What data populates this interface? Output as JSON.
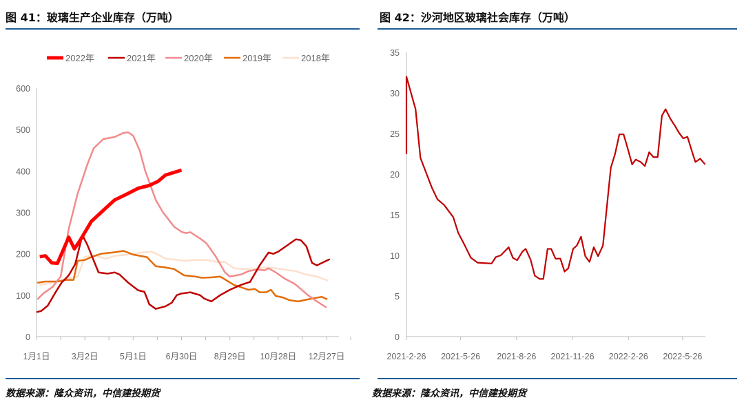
{
  "left": {
    "title": "图 41：玻璃生产企业库存（万吨）",
    "source": "数据来源：隆众资讯，中信建投期货"
  },
  "right": {
    "title": "图 42：沙河地区玻璃社会库存（万吨）",
    "source": "数据来源：隆众资讯，中信建投期货"
  },
  "rule_color": "#1f5c99",
  "chart_data": [
    {
      "type": "line",
      "title": "图 41：玻璃生产企业库存（万吨）",
      "xlabel": "",
      "ylabel": "",
      "ylim": [
        0,
        600
      ],
      "yticks": [
        0,
        100,
        200,
        300,
        400,
        500,
        600
      ],
      "xticks": [
        "1月1日",
        "3月2日",
        "5月1日",
        "6月30日",
        "8月29日",
        "10月28日",
        "12月27日"
      ],
      "grid": false,
      "legend": "top",
      "series": [
        {
          "name": "2022年",
          "color": "#ff0000",
          "points": [
            [
              "1-5",
              193
            ],
            [
              "1-12",
              195
            ],
            [
              "1-20",
              178
            ],
            [
              "1-27",
              177
            ],
            [
              "2-10",
              240
            ],
            [
              "2-17",
              212
            ],
            [
              "2-24",
              232
            ],
            [
              "3-10",
              278
            ],
            [
              "3-25",
              305
            ],
            [
              "4-8",
              330
            ],
            [
              "4-22",
              343
            ],
            [
              "5-7",
              358
            ],
            [
              "5-21",
              365
            ],
            [
              "6-1",
              375
            ],
            [
              "6-10",
              390
            ],
            [
              "6-30",
              402
            ]
          ]
        },
        {
          "name": "2021年",
          "color": "#c00000",
          "points": [
            [
              "1-1",
              59
            ],
            [
              "1-7",
              62
            ],
            [
              "1-15",
              75
            ],
            [
              "1-24",
              105
            ],
            [
              "2-1",
              130
            ],
            [
              "2-10",
              148
            ],
            [
              "2-18",
              175
            ],
            [
              "2-27",
              245
            ],
            [
              "3-5",
              222
            ],
            [
              "3-19",
              155
            ],
            [
              "3-30",
              152
            ],
            [
              "4-8",
              155
            ],
            [
              "4-14",
              150
            ],
            [
              "4-25",
              130
            ],
            [
              "5-7",
              112
            ],
            [
              "5-15",
              108
            ],
            [
              "5-21",
              78
            ],
            [
              "5-29",
              67
            ],
            [
              "6-10",
              73
            ],
            [
              "6-18",
              82
            ],
            [
              "6-24",
              100
            ],
            [
              "6-30",
              104
            ],
            [
              "7-11",
              107
            ],
            [
              "7-23",
              100
            ],
            [
              "7-28",
              92
            ],
            [
              "8-6",
              85
            ],
            [
              "8-17",
              100
            ],
            [
              "8-29",
              113
            ],
            [
              "9-12",
              125
            ],
            [
              "9-23",
              132
            ],
            [
              "10-5",
              172
            ],
            [
              "10-16",
              203
            ],
            [
              "10-22",
              200
            ],
            [
              "10-28",
              205
            ],
            [
              "11-19",
              235
            ],
            [
              "11-25",
              233
            ],
            [
              "12-2",
              218
            ],
            [
              "12-9",
              178
            ],
            [
              "12-15",
              172
            ],
            [
              "12-31",
              187
            ]
          ]
        },
        {
          "name": "2020年",
          "color": "#f28b8b",
          "points": [
            [
              "1-2",
              90
            ],
            [
              "1-10",
              105
            ],
            [
              "1-21",
              120
            ],
            [
              "1-31",
              145
            ],
            [
              "2-10",
              260
            ],
            [
              "2-21",
              345
            ],
            [
              "3-5",
              415
            ],
            [
              "3-13",
              455
            ],
            [
              "3-25",
              477
            ],
            [
              "4-8",
              482
            ],
            [
              "4-19",
              492
            ],
            [
              "4-25",
              493
            ],
            [
              "5-1",
              485
            ],
            [
              "5-9",
              450
            ],
            [
              "5-16",
              400
            ],
            [
              "5-29",
              330
            ],
            [
              "6-7",
              300
            ],
            [
              "6-21",
              265
            ],
            [
              "6-30",
              253
            ],
            [
              "7-5",
              250
            ],
            [
              "7-11",
              252
            ],
            [
              "7-23",
              237
            ],
            [
              "7-31",
              225
            ],
            [
              "8-11",
              195
            ],
            [
              "8-23",
              155
            ],
            [
              "8-29",
              145
            ],
            [
              "9-12",
              150
            ],
            [
              "9-21",
              158
            ],
            [
              "10-2",
              162
            ],
            [
              "10-11",
              160
            ],
            [
              "10-16",
              165
            ],
            [
              "10-25",
              155
            ],
            [
              "11-5",
              140
            ],
            [
              "11-17",
              128
            ],
            [
              "11-22",
              120
            ],
            [
              "12-4",
              100
            ],
            [
              "12-15",
              85
            ],
            [
              "12-27",
              70
            ]
          ]
        },
        {
          "name": "2019年",
          "color": "#e36c09",
          "points": [
            [
              "1-2",
              130
            ],
            [
              "1-12",
              133
            ],
            [
              "1-27",
              133
            ],
            [
              "2-7",
              137
            ],
            [
              "2-16",
              137
            ],
            [
              "2-21",
              183
            ],
            [
              "3-2",
              185
            ],
            [
              "3-10",
              192
            ],
            [
              "3-22",
              200
            ],
            [
              "4-5",
              203
            ],
            [
              "4-19",
              207
            ],
            [
              "5-1",
              198
            ],
            [
              "5-18",
              192
            ],
            [
              "5-29",
              170
            ],
            [
              "6-10",
              167
            ],
            [
              "6-21",
              163
            ],
            [
              "7-3",
              148
            ],
            [
              "7-17",
              145
            ],
            [
              "7-25",
              142
            ],
            [
              "8-6",
              143
            ],
            [
              "8-17",
              145
            ],
            [
              "9-3",
              125
            ],
            [
              "9-15",
              117
            ],
            [
              "9-21",
              113
            ],
            [
              "9-29",
              115
            ],
            [
              "10-5",
              107
            ],
            [
              "10-13",
              107
            ],
            [
              "10-19",
              113
            ],
            [
              "10-25",
              98
            ],
            [
              "11-2",
              95
            ],
            [
              "11-11",
              88
            ],
            [
              "11-22",
              85
            ],
            [
              "12-4",
              90
            ],
            [
              "12-15",
              94
            ],
            [
              "12-21",
              96
            ],
            [
              "12-28",
              90
            ]
          ]
        },
        {
          "name": "2018年",
          "color": "#fde0cc",
          "points": [
            [
              "1-4",
              125
            ],
            [
              "1-21",
              130
            ],
            [
              "2-7",
              140
            ],
            [
              "2-21",
              145
            ],
            [
              "3-2",
              193
            ],
            [
              "3-16",
              195
            ],
            [
              "3-28",
              188
            ],
            [
              "4-8",
              195
            ],
            [
              "4-25",
              198
            ],
            [
              "5-12",
              203
            ],
            [
              "5-24",
              205
            ],
            [
              "6-4",
              195
            ],
            [
              "6-10",
              188
            ],
            [
              "6-27",
              185
            ],
            [
              "7-3",
              183
            ],
            [
              "7-17",
              185
            ],
            [
              "7-31",
              185
            ],
            [
              "8-14",
              180
            ],
            [
              "8-23",
              180
            ],
            [
              "9-3",
              165
            ],
            [
              "9-15",
              163
            ],
            [
              "9-26",
              163
            ],
            [
              "10-13",
              167
            ],
            [
              "10-25",
              165
            ],
            [
              "11-11",
              160
            ],
            [
              "11-19",
              158
            ],
            [
              "12-1",
              150
            ],
            [
              "12-15",
              145
            ],
            [
              "12-29",
              135
            ]
          ]
        }
      ]
    },
    {
      "type": "line",
      "title": "图 42：沙河地区玻璃社会库存（万吨）",
      "xlabel": "",
      "ylabel": "",
      "ylim": [
        0,
        35
      ],
      "yticks": [
        0,
        5,
        10,
        15,
        20,
        25,
        30,
        35
      ],
      "xticks": [
        "2021-2-26",
        "2021-5-26",
        "2021-8-26",
        "2021-11-26",
        "2022-2-26",
        "2022-5-26"
      ],
      "xlim": [
        "2021-02-26",
        "2022-07-02"
      ],
      "grid": false,
      "series": [
        {
          "color": "#c00000",
          "points": [
            [
              "2021-02-26",
              32
            ],
            [
              "2021-03-13",
              28
            ],
            [
              "2021-03-21",
              22
            ],
            [
              "2021-04-09",
              18.3
            ],
            [
              "2021-04-18",
              16.9
            ],
            [
              "2021-04-29",
              16.2
            ],
            [
              "2021-05-14",
              14.7
            ],
            [
              "2021-05-22",
              12.8
            ],
            [
              "2021-05-31",
              11.5
            ],
            [
              "2021-06-12",
              9.7
            ],
            [
              "2021-06-23",
              9.1
            ],
            [
              "2021-07-16",
              9.0
            ],
            [
              "2021-07-23",
              9.8
            ],
            [
              "2021-07-31",
              10.0
            ],
            [
              "2021-08-13",
              11.0
            ],
            [
              "2021-08-20",
              9.7
            ],
            [
              "2021-08-27",
              9.4
            ],
            [
              "2021-09-05",
              10.5
            ],
            [
              "2021-09-10",
              10.8
            ],
            [
              "2021-09-18",
              9.5
            ],
            [
              "2021-09-25",
              7.5
            ],
            [
              "2021-10-03",
              7.1
            ],
            [
              "2021-10-09",
              7.1
            ],
            [
              "2021-10-16",
              10.8
            ],
            [
              "2021-10-22",
              10.8
            ],
            [
              "2021-10-29",
              9.6
            ],
            [
              "2021-11-06",
              9.6
            ],
            [
              "2021-11-13",
              8.0
            ],
            [
              "2021-11-19",
              8.4
            ],
            [
              "2021-11-27",
              10.8
            ],
            [
              "2021-12-03",
              11.2
            ],
            [
              "2021-12-10",
              12.3
            ],
            [
              "2021-12-17",
              9.9
            ],
            [
              "2021-12-24",
              9.2
            ],
            [
              "2021-12-31",
              11.0
            ],
            [
              "2022-01-07",
              9.9
            ],
            [
              "2022-01-15",
              11.2
            ],
            [
              "2022-01-28",
              20.8
            ],
            [
              "2022-02-04",
              22.5
            ],
            [
              "2022-02-11",
              24.9
            ],
            [
              "2022-02-18",
              24.9
            ],
            [
              "2022-02-25",
              23.1
            ],
            [
              "2022-03-04",
              21.2
            ],
            [
              "2022-03-10",
              21.8
            ],
            [
              "2022-03-18",
              21.5
            ],
            [
              "2022-03-25",
              21.0
            ],
            [
              "2022-04-01",
              22.7
            ],
            [
              "2022-04-08",
              22.1
            ],
            [
              "2022-04-15",
              22.1
            ],
            [
              "2022-04-22",
              27.2
            ],
            [
              "2022-04-28",
              28.0
            ],
            [
              "2022-05-06",
              26.8
            ],
            [
              "2022-05-13",
              26.0
            ],
            [
              "2022-05-20",
              25.1
            ],
            [
              "2022-05-27",
              24.4
            ],
            [
              "2022-06-03",
              24.6
            ],
            [
              "2022-06-10",
              22.9
            ],
            [
              "2022-06-16",
              21.5
            ],
            [
              "2022-06-24",
              21.9
            ],
            [
              "2022-07-02",
              21.2
            ]
          ]
        }
      ]
    }
  ]
}
